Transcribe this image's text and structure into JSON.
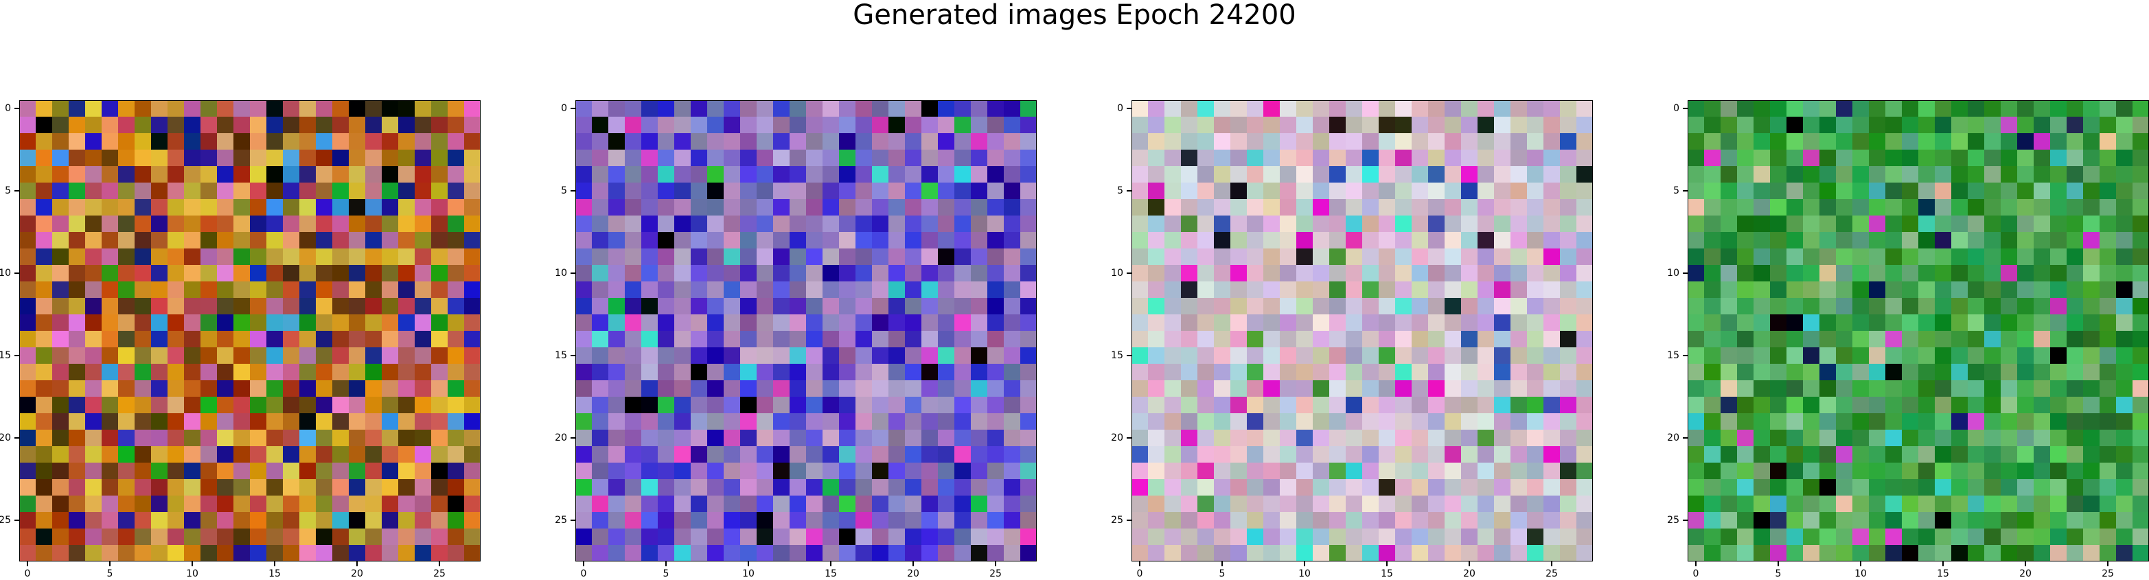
{
  "figure": {
    "title": "Generated images Epoch 24200"
  },
  "axes": {
    "tick_values": [
      0,
      5,
      10,
      15,
      20,
      25
    ],
    "tick_labels": [
      "0",
      "5",
      "10",
      "15",
      "20",
      "25"
    ],
    "grid_size": 28
  },
  "panels": [
    {
      "name": "generated-image-1",
      "palette": [
        "#c9a12a",
        "#d98b1a",
        "#b85a14",
        "#a0350f",
        "#e0c040",
        "#c05050",
        "#8a7a20",
        "#e4a060",
        "#5a3a10",
        "#1a1a8a",
        "#c06a9a"
      ],
      "rare": [
        "#000000",
        "#2020c0",
        "#20a020",
        "#e070d0",
        "#40a0e0"
      ]
    },
    {
      "name": "generated-image-2",
      "palette": [
        "#9a8ad0",
        "#b090c0",
        "#7060d0",
        "#5050e0",
        "#3020c0",
        "#c0a0d0",
        "#8a70b0",
        "#6a6ab0",
        "#a080c0",
        "#4030d0",
        "#9060a0"
      ],
      "rare": [
        "#000000",
        "#20c040",
        "#40d0d0",
        "#e040c0",
        "#2000a0"
      ]
    },
    {
      "name": "generated-image-3",
      "palette": [
        "#d8c0d8",
        "#c0a8d0",
        "#e0b0d0",
        "#b8d0c0",
        "#d0d0e0",
        "#c8a0b8",
        "#e8d8e0",
        "#a8c8d8",
        "#c8c0a8",
        "#b0a0c8",
        "#e0c8c0"
      ],
      "rare": [
        "#202020",
        "#3050b0",
        "#40e0d0",
        "#e020c0",
        "#40a040"
      ]
    },
    {
      "name": "generated-image-4",
      "palette": [
        "#3a9a3a",
        "#2a8a2a",
        "#50b050",
        "#1a7a2a",
        "#60c060",
        "#208020",
        "#70b070",
        "#3aa04a",
        "#58a878",
        "#2a9a4a",
        "#80c090"
      ],
      "rare": [
        "#000000",
        "#102060",
        "#d040c0",
        "#40c0c0",
        "#e0c0a0"
      ]
    }
  ]
}
